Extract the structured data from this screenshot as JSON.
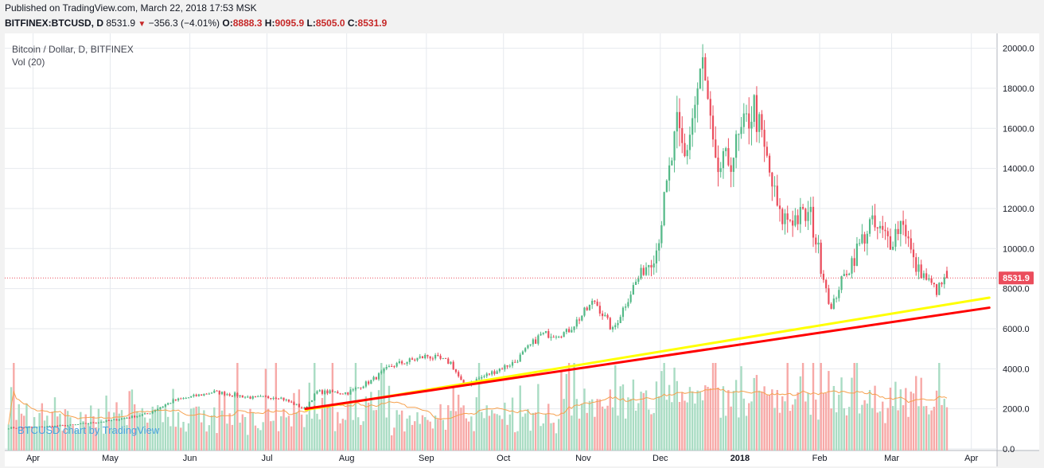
{
  "header": {
    "published": "Published on TradingView.com, March 22, 2018 17:53 MSK",
    "symbol": "BITFINEX:BTCUSD, D",
    "last": "8531.9",
    "change": "−356.3 (−4.01%)",
    "open_label": "O:",
    "open": "8888.3",
    "high_label": "H:",
    "high": "9095.9",
    "low_label": "L:",
    "low": "8505.0",
    "close_label": "C:",
    "close": "8531.9",
    "down_arrow": "▼"
  },
  "legend": {
    "series_title": "Bitcoin / Dollar, D, BITFINEX",
    "volume_title": "Vol (20)"
  },
  "watermark": "BTCUSD chart by TradingView",
  "price_tag": "8531.9",
  "colors": {
    "up": "#53b987",
    "down": "#eb4d5c",
    "vol_up": "#a9dcc3",
    "vol_down": "#f7a9a7",
    "yellow_line": "#ffff00",
    "red_line": "#ff0000",
    "vol_ma": "#f6a04d",
    "grid": "#e6e9ee"
  },
  "chart_data": {
    "type": "candlestick",
    "y_ticks": [
      "20000.0",
      "18000.0",
      "16000.0",
      "14000.0",
      "12000.0",
      "10000.0",
      "8000.0",
      "6000.0",
      "4000.0",
      "2000.0",
      "0.0"
    ],
    "x_ticks": [
      "Apr",
      "May",
      "Jun",
      "Jul",
      "Aug",
      "Sep",
      "Oct",
      "Nov",
      "Dec",
      "2018",
      "Feb",
      "Mar",
      "Apr"
    ],
    "ylim": [
      0,
      20500
    ],
    "last_price": 8531.9,
    "anchors": [
      [
        "2017-03-22",
        1050
      ],
      [
        "2017-04-01",
        1080
      ],
      [
        "2017-04-15",
        1180
      ],
      [
        "2017-05-01",
        1420
      ],
      [
        "2017-05-15",
        1750
      ],
      [
        "2017-05-25",
        2400
      ],
      [
        "2017-06-10",
        2850
      ],
      [
        "2017-06-25",
        2550
      ],
      [
        "2017-07-05",
        2600
      ],
      [
        "2017-07-15",
        2000
      ],
      [
        "2017-07-20",
        2850
      ],
      [
        "2017-08-01",
        2800
      ],
      [
        "2017-08-10",
        3400
      ],
      [
        "2017-08-18",
        4150
      ],
      [
        "2017-09-01",
        4650
      ],
      [
        "2017-09-10",
        4300
      ],
      [
        "2017-09-15",
        3150
      ],
      [
        "2017-09-25",
        3750
      ],
      [
        "2017-10-05",
        4350
      ],
      [
        "2017-10-15",
        5700
      ],
      [
        "2017-10-25",
        5800
      ],
      [
        "2017-11-05",
        7400
      ],
      [
        "2017-11-12",
        5900
      ],
      [
        "2017-11-20",
        8100
      ],
      [
        "2017-11-29",
        10000
      ],
      [
        "2017-12-07",
        16000
      ],
      [
        "2017-12-10",
        14500
      ],
      [
        "2017-12-17",
        19200
      ],
      [
        "2017-12-22",
        13800
      ],
      [
        "2017-12-28",
        14500
      ],
      [
        "2018-01-06",
        17100
      ],
      [
        "2018-01-16",
        11500
      ],
      [
        "2018-01-28",
        11600
      ],
      [
        "2018-02-05",
        6900
      ],
      [
        "2018-02-08",
        8100
      ],
      [
        "2018-02-20",
        11200
      ],
      [
        "2018-02-28",
        10400
      ],
      [
        "2018-03-05",
        11500
      ],
      [
        "2018-03-09",
        9250
      ],
      [
        "2018-03-18",
        7900
      ],
      [
        "2018-03-22",
        8531.9
      ]
    ],
    "trendlines": [
      {
        "color": "yellow",
        "from": [
          "2017-07-16",
          1950
        ],
        "to": [
          "2018-04-08",
          7550
        ]
      },
      {
        "color": "red",
        "from": [
          "2017-07-16",
          2000
        ],
        "to": [
          "2018-04-08",
          7050
        ]
      }
    ],
    "date_range": [
      "2017-03-21",
      "2018-04-11"
    ]
  }
}
